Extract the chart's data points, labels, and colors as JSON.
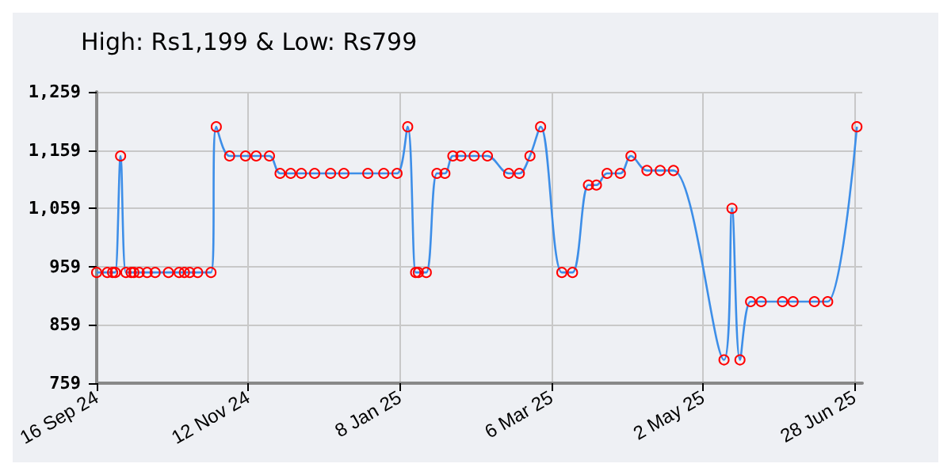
{
  "chart_data": {
    "type": "line",
    "title": "High: Rs1,199 & Low: Rs799",
    "x": [
      "2024-09-16",
      "2024-09-20",
      "2024-09-22",
      "2024-09-23",
      "2024-09-25",
      "2024-09-27",
      "2024-09-29",
      "2024-09-30",
      "2024-10-02",
      "2024-10-05",
      "2024-10-08",
      "2024-10-13",
      "2024-10-17",
      "2024-10-19",
      "2024-10-21",
      "2024-10-24",
      "2024-10-29",
      "2024-10-31",
      "2024-11-05",
      "2024-11-11",
      "2024-11-15",
      "2024-11-20",
      "2024-11-24",
      "2024-11-28",
      "2024-12-02",
      "2024-12-07",
      "2024-12-13",
      "2024-12-18",
      "2024-12-27",
      "2025-01-02",
      "2025-01-07",
      "2025-01-11",
      "2025-01-14",
      "2025-01-15",
      "2025-01-18",
      "2025-01-22",
      "2025-01-25",
      "2025-01-28",
      "2025-01-31",
      "2025-02-05",
      "2025-02-10",
      "2025-02-18",
      "2025-02-22",
      "2025-02-26",
      "2025-03-02",
      "2025-03-10",
      "2025-03-14",
      "2025-03-20",
      "2025-03-23",
      "2025-03-27",
      "2025-04-01",
      "2025-04-05",
      "2025-04-11",
      "2025-04-16",
      "2025-04-21",
      "2025-05-10",
      "2025-05-13",
      "2025-05-16",
      "2025-05-20",
      "2025-05-24",
      "2025-06-01",
      "2025-06-05",
      "2025-06-13",
      "2025-06-18",
      "2025-06-29"
    ],
    "series": [
      {
        "color": "#3d8ee8",
        "values": [
          949,
          949,
          949,
          949,
          1149,
          949,
          949,
          949,
          949,
          949,
          949,
          949,
          949,
          949,
          949,
          949,
          949,
          1199,
          1149,
          1149,
          1149,
          1149,
          1119,
          1119,
          1119,
          1119,
          1119,
          1119,
          1119,
          1119,
          1119,
          1199,
          949,
          949,
          949,
          1119,
          1119,
          1149,
          1149,
          1149,
          1149,
          1119,
          1119,
          1149,
          1199,
          949,
          949,
          1099,
          1099,
          1119,
          1119,
          1149,
          1124,
          1124,
          1124,
          799,
          1059,
          799,
          899,
          899,
          899,
          899,
          899,
          899,
          1199
        ]
      }
    ],
    "xlim": [
      "2024-09-16",
      "2025-07-01"
    ],
    "xticks": [
      {
        "value": "2024-09-16",
        "label": "16 Sep 24"
      },
      {
        "value": "2024-11-12",
        "label": "12 Nov 24"
      },
      {
        "value": "2025-01-08",
        "label": "8 Jan 25"
      },
      {
        "value": "2025-03-06",
        "label": "6 Mar 25"
      },
      {
        "value": "2025-05-02",
        "label": "2 May 25"
      },
      {
        "value": "2025-06-28",
        "label": "28 Jun 25"
      }
    ],
    "ylim": [
      759,
      1259
    ],
    "yticks": [
      759,
      859,
      959,
      {
        "value": 1059,
        "label": "1,059"
      },
      {
        "value": 1159,
        "label": "1,159"
      },
      {
        "value": 1259,
        "label": "1,259"
      }
    ],
    "grid": true,
    "marker": "circle",
    "line_style": "solid"
  }
}
